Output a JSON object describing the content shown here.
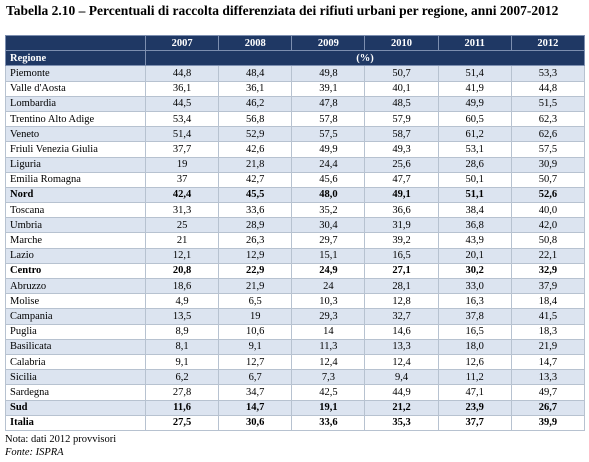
{
  "title": "Tabella 2.10 – Percentuali di raccolta differenziata dei rifiuti urbani per regione, anni 2007-2012",
  "table": {
    "years": [
      "2007",
      "2008",
      "2009",
      "2010",
      "2011",
      "2012"
    ],
    "region_header": "Regione",
    "unit": "(%)",
    "rows": [
      {
        "label": "Piemonte",
        "values": [
          "44,8",
          "48,4",
          "49,8",
          "50,7",
          "51,4",
          "53,3"
        ]
      },
      {
        "label": "Valle d'Aosta",
        "values": [
          "36,1",
          "36,1",
          "39,1",
          "40,1",
          "41,9",
          "44,8"
        ]
      },
      {
        "label": "Lombardia",
        "values": [
          "44,5",
          "46,2",
          "47,8",
          "48,5",
          "49,9",
          "51,5"
        ]
      },
      {
        "label": "Trentino Alto Adige",
        "values": [
          "53,4",
          "56,8",
          "57,8",
          "57,9",
          "60,5",
          "62,3"
        ]
      },
      {
        "label": "Veneto",
        "values": [
          "51,4",
          "52,9",
          "57,5",
          "58,7",
          "61,2",
          "62,6"
        ]
      },
      {
        "label": "Friuli Venezia Giulia",
        "values": [
          "37,7",
          "42,6",
          "49,9",
          "49,3",
          "53,1",
          "57,5"
        ]
      },
      {
        "label": "Liguria",
        "values": [
          "19",
          "21,8",
          "24,4",
          "25,6",
          "28,6",
          "30,9"
        ]
      },
      {
        "label": "Emilia Romagna",
        "values": [
          "37",
          "42,7",
          "45,6",
          "47,7",
          "50,1",
          "50,7"
        ]
      },
      {
        "label": "Nord",
        "values": [
          "42,4",
          "45,5",
          "48,0",
          "49,1",
          "51,1",
          "52,6"
        ],
        "bold": true
      },
      {
        "label": "Toscana",
        "values": [
          "31,3",
          "33,6",
          "35,2",
          "36,6",
          "38,4",
          "40,0"
        ]
      },
      {
        "label": "Umbria",
        "values": [
          "25",
          "28,9",
          "30,4",
          "31,9",
          "36,8",
          "42,0"
        ]
      },
      {
        "label": "Marche",
        "values": [
          "21",
          "26,3",
          "29,7",
          "39,2",
          "43,9",
          "50,8"
        ]
      },
      {
        "label": "Lazio",
        "values": [
          "12,1",
          "12,9",
          "15,1",
          "16,5",
          "20,1",
          "22,1"
        ]
      },
      {
        "label": "Centro",
        "values": [
          "20,8",
          "22,9",
          "24,9",
          "27,1",
          "30,2",
          "32,9"
        ],
        "bold": true
      },
      {
        "label": "Abruzzo",
        "values": [
          "18,6",
          "21,9",
          "24",
          "28,1",
          "33,0",
          "37,9"
        ]
      },
      {
        "label": "Molise",
        "values": [
          "4,9",
          "6,5",
          "10,3",
          "12,8",
          "16,3",
          "18,4"
        ]
      },
      {
        "label": "Campania",
        "values": [
          "13,5",
          "19",
          "29,3",
          "32,7",
          "37,8",
          "41,5"
        ]
      },
      {
        "label": "Puglia",
        "values": [
          "8,9",
          "10,6",
          "14",
          "14,6",
          "16,5",
          "18,3"
        ]
      },
      {
        "label": "Basilicata",
        "values": [
          "8,1",
          "9,1",
          "11,3",
          "13,3",
          "18,0",
          "21,9"
        ]
      },
      {
        "label": "Calabria",
        "values": [
          "9,1",
          "12,7",
          "12,4",
          "12,4",
          "12,6",
          "14,7"
        ]
      },
      {
        "label": "Sicilia",
        "values": [
          "6,2",
          "6,7",
          "7,3",
          "9,4",
          "11,2",
          "13,3"
        ]
      },
      {
        "label": "Sardegna",
        "values": [
          "27,8",
          "34,7",
          "42,5",
          "44,9",
          "47,1",
          "49,7"
        ]
      },
      {
        "label": "Sud",
        "values": [
          "11,6",
          "14,7",
          "19,1",
          "21,2",
          "23,9",
          "26,7"
        ],
        "bold": true
      },
      {
        "label": "Italia",
        "values": [
          "27,5",
          "30,6",
          "33,6",
          "35,3",
          "37,7",
          "39,9"
        ],
        "bold": true
      }
    ]
  },
  "notes": [
    "Nota: dati 2012 provvisori",
    "Fonte: ISPRA"
  ]
}
